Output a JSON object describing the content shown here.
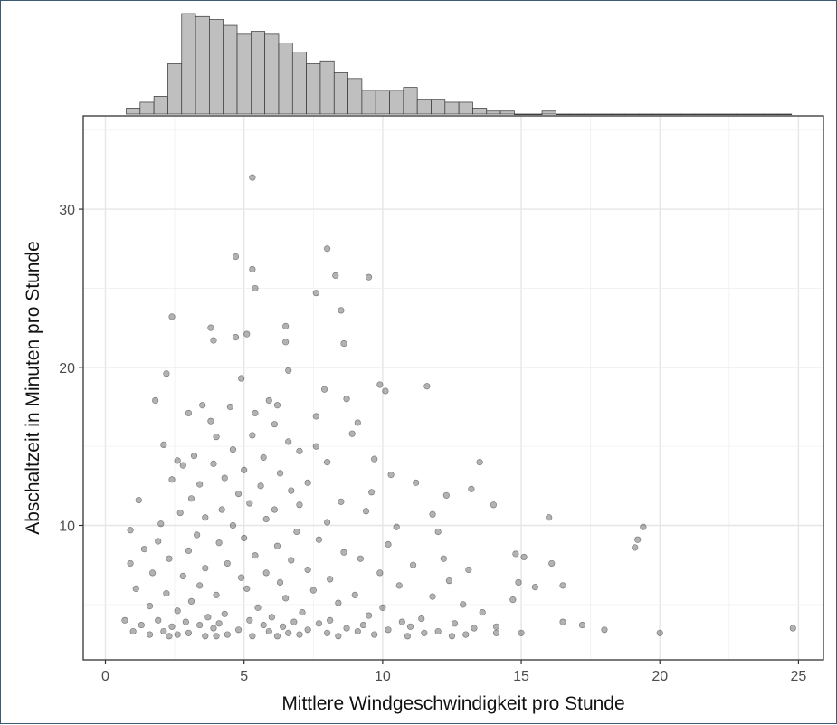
{
  "chart_data": {
    "type": "scatter",
    "title": "",
    "xlabel": "Mittlere Windgeschwindigkeit pro Stunde",
    "ylabel": "Abschaltzeit in Minuten pro Stunde",
    "xlim": [
      -0.8,
      25.9
    ],
    "ylim": [
      1.5,
      35.9
    ],
    "x_ticks": [
      0,
      5,
      10,
      15,
      20,
      25
    ],
    "y_ticks": [
      10,
      20,
      30
    ],
    "grid": true,
    "marginal_histogram": {
      "position": "top",
      "bin_width": 0.5,
      "bins_start": 0.75,
      "counts": [
        2,
        4,
        6,
        17,
        34,
        33,
        32,
        30,
        27,
        28,
        27,
        24,
        21,
        17,
        18,
        14,
        12,
        8,
        8,
        8,
        9,
        5,
        5,
        4,
        4,
        2,
        1,
        1,
        0,
        0,
        1,
        0,
        0,
        0,
        0,
        0,
        0,
        0,
        0,
        0,
        0,
        0,
        0,
        0,
        0,
        0,
        0,
        0
      ]
    },
    "series": [
      {
        "marker": "circle",
        "color": "#000000",
        "opacity": 0.3,
        "points": [
          [
            5.3,
            32.0
          ],
          [
            8.0,
            27.5
          ],
          [
            4.7,
            27.0
          ],
          [
            5.3,
            26.2
          ],
          [
            8.3,
            25.8
          ],
          [
            9.5,
            25.7
          ],
          [
            5.4,
            25.0
          ],
          [
            7.6,
            24.7
          ],
          [
            8.5,
            23.6
          ],
          [
            2.4,
            23.2
          ],
          [
            3.8,
            22.5
          ],
          [
            6.5,
            22.6
          ],
          [
            5.1,
            22.1
          ],
          [
            3.9,
            21.7
          ],
          [
            6.5,
            21.6
          ],
          [
            4.7,
            21.9
          ],
          [
            8.6,
            21.5
          ],
          [
            2.2,
            19.6
          ],
          [
            6.6,
            19.8
          ],
          [
            4.9,
            19.3
          ],
          [
            9.9,
            18.9
          ],
          [
            7.9,
            18.6
          ],
          [
            11.6,
            18.8
          ],
          [
            10.1,
            18.5
          ],
          [
            1.8,
            17.9
          ],
          [
            8.7,
            18.0
          ],
          [
            5.9,
            17.9
          ],
          [
            4.5,
            17.5
          ],
          [
            3.5,
            17.6
          ],
          [
            6.2,
            17.6
          ],
          [
            5.4,
            17.1
          ],
          [
            7.6,
            16.9
          ],
          [
            3.0,
            17.1
          ],
          [
            9.1,
            16.5
          ],
          [
            3.8,
            16.6
          ],
          [
            6.1,
            16.4
          ],
          [
            5.3,
            15.7
          ],
          [
            8.9,
            15.8
          ],
          [
            4.0,
            15.6
          ],
          [
            2.1,
            15.1
          ],
          [
            6.6,
            15.3
          ],
          [
            7.6,
            15.0
          ],
          [
            4.6,
            14.8
          ],
          [
            3.2,
            14.4
          ],
          [
            5.7,
            14.3
          ],
          [
            2.6,
            14.1
          ],
          [
            7.0,
            14.7
          ],
          [
            3.9,
            13.9
          ],
          [
            8.0,
            14.0
          ],
          [
            9.7,
            14.2
          ],
          [
            13.5,
            14.0
          ],
          [
            5.0,
            13.5
          ],
          [
            6.3,
            13.3
          ],
          [
            2.8,
            13.8
          ],
          [
            4.3,
            13.0
          ],
          [
            10.3,
            13.2
          ],
          [
            7.3,
            12.7
          ],
          [
            3.4,
            12.6
          ],
          [
            11.2,
            12.7
          ],
          [
            5.6,
            12.5
          ],
          [
            2.4,
            12.9
          ],
          [
            13.2,
            12.3
          ],
          [
            6.7,
            12.2
          ],
          [
            4.8,
            12.0
          ],
          [
            9.6,
            12.1
          ],
          [
            12.3,
            11.9
          ],
          [
            3.1,
            11.7
          ],
          [
            1.2,
            11.6
          ],
          [
            8.5,
            11.5
          ],
          [
            5.2,
            11.4
          ],
          [
            7.0,
            11.3
          ],
          [
            14.0,
            11.3
          ],
          [
            4.2,
            11.0
          ],
          [
            6.1,
            11.0
          ],
          [
            2.7,
            10.8
          ],
          [
            9.4,
            10.9
          ],
          [
            11.8,
            10.7
          ],
          [
            3.6,
            10.5
          ],
          [
            5.8,
            10.4
          ],
          [
            16.0,
            10.5
          ],
          [
            8.0,
            10.2
          ],
          [
            2.0,
            10.1
          ],
          [
            4.6,
            10.0
          ],
          [
            10.5,
            9.9
          ],
          [
            0.9,
            9.7
          ],
          [
            12.0,
            9.6
          ],
          [
            6.9,
            9.6
          ],
          [
            3.3,
            9.4
          ],
          [
            19.4,
            9.9
          ],
          [
            5.0,
            9.2
          ],
          [
            7.7,
            9.1
          ],
          [
            19.2,
            9.1
          ],
          [
            1.9,
            9.0
          ],
          [
            4.1,
            8.9
          ],
          [
            10.2,
            8.8
          ],
          [
            6.2,
            8.7
          ],
          [
            19.1,
            8.6
          ],
          [
            1.4,
            8.5
          ],
          [
            3.0,
            8.4
          ],
          [
            8.6,
            8.3
          ],
          [
            5.4,
            8.1
          ],
          [
            14.8,
            8.2
          ],
          [
            15.1,
            8.0
          ],
          [
            2.3,
            7.9
          ],
          [
            9.2,
            7.9
          ],
          [
            6.7,
            7.8
          ],
          [
            12.2,
            7.9
          ],
          [
            0.9,
            7.6
          ],
          [
            4.4,
            7.6
          ],
          [
            16.1,
            7.6
          ],
          [
            11.1,
            7.5
          ],
          [
            3.6,
            7.3
          ],
          [
            7.3,
            7.2
          ],
          [
            13.1,
            7.2
          ],
          [
            1.7,
            7.0
          ],
          [
            5.8,
            7.0
          ],
          [
            9.9,
            7.0
          ],
          [
            2.8,
            6.8
          ],
          [
            4.9,
            6.7
          ],
          [
            8.1,
            6.6
          ],
          [
            12.4,
            6.5
          ],
          [
            6.3,
            6.4
          ],
          [
            14.9,
            6.4
          ],
          [
            3.4,
            6.2
          ],
          [
            10.6,
            6.2
          ],
          [
            16.5,
            6.2
          ],
          [
            1.1,
            6.0
          ],
          [
            5.1,
            6.0
          ],
          [
            7.5,
            5.9
          ],
          [
            15.5,
            6.1
          ],
          [
            2.2,
            5.7
          ],
          [
            4.0,
            5.6
          ],
          [
            9.0,
            5.6
          ],
          [
            11.8,
            5.5
          ],
          [
            6.5,
            5.4
          ],
          [
            14.7,
            5.3
          ],
          [
            3.1,
            5.2
          ],
          [
            8.4,
            5.1
          ],
          [
            12.9,
            5.0
          ],
          [
            1.6,
            4.9
          ],
          [
            5.5,
            4.8
          ],
          [
            10.0,
            4.8
          ],
          [
            2.6,
            4.6
          ],
          [
            7.1,
            4.5
          ],
          [
            13.6,
            4.5
          ],
          [
            4.3,
            4.4
          ],
          [
            9.5,
            4.3
          ],
          [
            3.7,
            4.2
          ],
          [
            6.0,
            4.2
          ],
          [
            11.4,
            4.1
          ],
          [
            0.7,
            4.0
          ],
          [
            1.9,
            4.0
          ],
          [
            5.2,
            4.0
          ],
          [
            8.1,
            4.0
          ],
          [
            16.5,
            3.9
          ],
          [
            2.9,
            3.9
          ],
          [
            6.8,
            3.9
          ],
          [
            10.7,
            3.9
          ],
          [
            17.2,
            3.7
          ],
          [
            4.1,
            3.8
          ],
          [
            7.7,
            3.8
          ],
          [
            12.6,
            3.8
          ],
          [
            1.3,
            3.7
          ],
          [
            3.4,
            3.7
          ],
          [
            9.3,
            3.7
          ],
          [
            5.7,
            3.7
          ],
          [
            14.1,
            3.6
          ],
          [
            2.4,
            3.6
          ],
          [
            6.4,
            3.6
          ],
          [
            11.0,
            3.6
          ],
          [
            18.0,
            3.4
          ],
          [
            24.8,
            3.5
          ],
          [
            3.9,
            3.5
          ],
          [
            8.7,
            3.5
          ],
          [
            13.3,
            3.5
          ],
          [
            1.0,
            3.3
          ],
          [
            4.8,
            3.4
          ],
          [
            7.3,
            3.4
          ],
          [
            10.2,
            3.4
          ],
          [
            15.0,
            3.2
          ],
          [
            20.0,
            3.2
          ],
          [
            2.1,
            3.3
          ],
          [
            5.9,
            3.3
          ],
          [
            9.1,
            3.3
          ],
          [
            12.0,
            3.3
          ],
          [
            3.0,
            3.2
          ],
          [
            6.6,
            3.2
          ],
          [
            8.0,
            3.2
          ],
          [
            11.5,
            3.2
          ],
          [
            14.1,
            3.2
          ],
          [
            2.6,
            3.1
          ],
          [
            4.4,
            3.1
          ],
          [
            7.0,
            3.1
          ],
          [
            9.7,
            3.1
          ],
          [
            13.0,
            3.1
          ],
          [
            1.6,
            3.1
          ],
          [
            3.6,
            3.0
          ],
          [
            5.3,
            3.0
          ],
          [
            8.4,
            3.0
          ],
          [
            10.9,
            3.0
          ],
          [
            2.3,
            3.0
          ],
          [
            6.2,
            3.0
          ],
          [
            4.0,
            3.0
          ],
          [
            12.5,
            3.0
          ]
        ]
      }
    ]
  }
}
